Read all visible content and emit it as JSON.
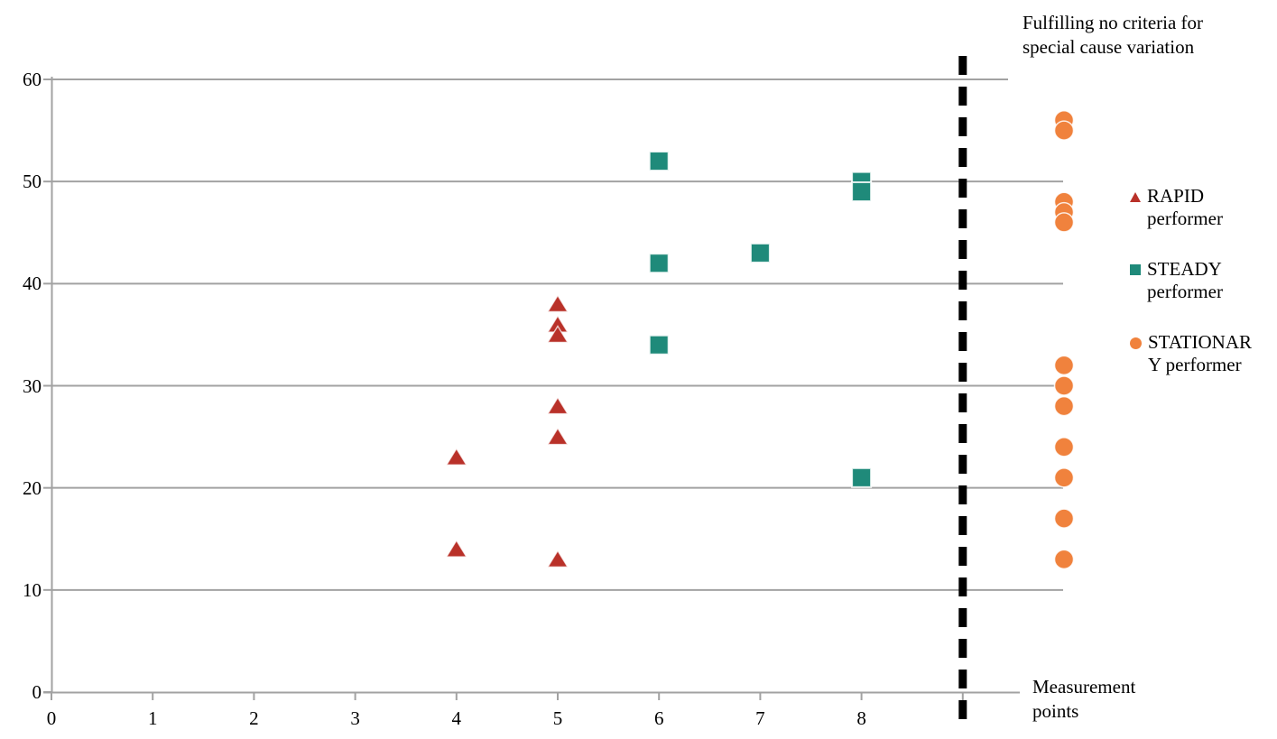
{
  "chart_data": {
    "type": "scatter",
    "title": "",
    "xlabel": "",
    "ylabel": "",
    "grid": true,
    "legend_position": "right",
    "x_axis": {
      "tick_labels": [
        "0",
        "1",
        "2",
        "3",
        "4",
        "5",
        "6",
        "7",
        "8"
      ],
      "tick_values": [
        0,
        1,
        2,
        3,
        4,
        5,
        6,
        7,
        8
      ],
      "range": [
        0,
        9.6
      ]
    },
    "y_axis": {
      "tick_labels": [
        "0",
        "10",
        "20",
        "30",
        "40",
        "50",
        "60"
      ],
      "tick_values": [
        0,
        10,
        20,
        30,
        40,
        50,
        60
      ],
      "range": [
        0,
        60
      ]
    },
    "separator_line_x": 9,
    "series": [
      {
        "name": "RAPID performer",
        "marker": "triangle",
        "color": "#B93129",
        "points": [
          [
            4,
            23
          ],
          [
            4,
            14
          ],
          [
            5,
            38
          ],
          [
            5,
            36
          ],
          [
            5,
            35
          ],
          [
            5,
            28
          ],
          [
            5,
            25
          ],
          [
            5,
            13
          ]
        ]
      },
      {
        "name": "STEADY performer",
        "marker": "square",
        "color": "#1F8A7A",
        "points": [
          [
            6,
            52
          ],
          [
            6,
            42
          ],
          [
            6,
            34
          ],
          [
            7,
            43
          ],
          [
            8,
            50
          ],
          [
            8,
            49
          ],
          [
            8,
            21
          ]
        ]
      },
      {
        "name": "STATIONARY performer",
        "marker": "circle",
        "color": "#F0823D",
        "points": [
          [
            10,
            56
          ],
          [
            10,
            55
          ],
          [
            10,
            48
          ],
          [
            10,
            47
          ],
          [
            10,
            46
          ],
          [
            10,
            32
          ],
          [
            10,
            30
          ],
          [
            10,
            28
          ],
          [
            10,
            24
          ],
          [
            10,
            21
          ],
          [
            10,
            17
          ],
          [
            10,
            13
          ]
        ]
      }
    ]
  },
  "annotations": {
    "top_right": {
      "lines": [
        "Fulfilling no criteria for",
        "special cause variation"
      ]
    },
    "bottom_right": {
      "lines": [
        "Measurement",
        "points"
      ]
    }
  },
  "legend": {
    "entries": [
      {
        "name": "RAPID performer",
        "label_lines": [
          "RAPID",
          "performer"
        ],
        "marker": "triangle",
        "color": "#B93129"
      },
      {
        "name": "STEADY performer",
        "label_lines": [
          "STEADY",
          "performer"
        ],
        "marker": "square",
        "color": "#1F8A7A"
      },
      {
        "name": "STATIONARY performer",
        "label_lines": [
          "STATIONAR",
          "Y performer"
        ],
        "marker": "circle",
        "color": "#F0823D"
      }
    ]
  },
  "colors": {
    "grid": "#A2A2A2",
    "axis": "#A2A2A2",
    "separator": "#000000",
    "background": "#FFFFFF",
    "text": "#000000"
  }
}
